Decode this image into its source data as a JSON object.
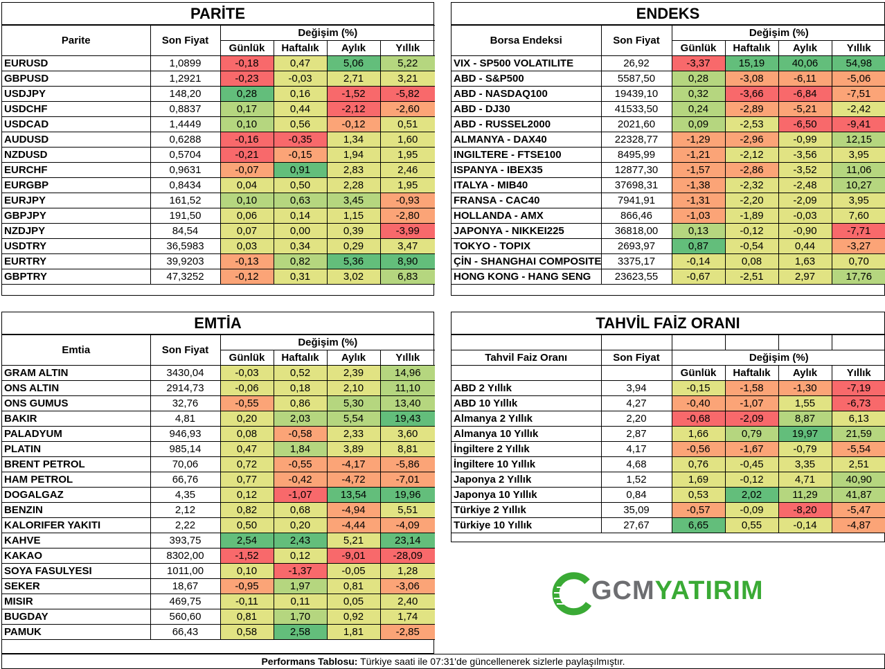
{
  "colors": {
    "red": "#f8696b",
    "orange": "#fba477",
    "yellow": "#e1e383",
    "lightgreen": "#b5d67f",
    "green": "#63be7b"
  },
  "headers": {
    "son_fiyat": "Son Fiyat",
    "degisim": "Değişim (%)",
    "gunluk": "Günlük",
    "haftalik": "Haftalık",
    "aylik": "Aylık",
    "yillik": "Yıllık"
  },
  "parite": {
    "title": "PARİTE",
    "col_label": "Parite",
    "rows": [
      [
        "EURUSD",
        "1,0899",
        "-0,18",
        "0,47",
        "5,06",
        "5,22"
      ],
      [
        "GBPUSD",
        "1,2921",
        "-0,23",
        "-0,03",
        "2,71",
        "3,21"
      ],
      [
        "USDJPY",
        "148,20",
        "0,28",
        "0,16",
        "-1,52",
        "-5,82"
      ],
      [
        "USDCHF",
        "0,8837",
        "0,17",
        "0,44",
        "-2,12",
        "-2,60"
      ],
      [
        "USDCAD",
        "1,4449",
        "0,10",
        "0,56",
        "-0,12",
        "0,51"
      ],
      [
        "AUDUSD",
        "0,6288",
        "-0,16",
        "-0,35",
        "1,34",
        "1,60"
      ],
      [
        "NZDUSD",
        "0,5704",
        "-0,21",
        "-0,15",
        "1,94",
        "1,95"
      ],
      [
        "EURCHF",
        "0,9631",
        "-0,07",
        "0,91",
        "2,83",
        "2,46"
      ],
      [
        "EURGBP",
        "0,8434",
        "0,04",
        "0,50",
        "2,28",
        "1,95"
      ],
      [
        "EURJPY",
        "161,52",
        "0,10",
        "0,63",
        "3,45",
        "-0,93"
      ],
      [
        "GBPJPY",
        "191,50",
        "0,06",
        "0,14",
        "1,15",
        "-2,80"
      ],
      [
        "NZDJPY",
        "84,54",
        "0,07",
        "0,00",
        "0,39",
        "-3,99"
      ],
      [
        "USDTRY",
        "36,5983",
        "0,03",
        "0,34",
        "0,29",
        "3,47"
      ],
      [
        "EURTRY",
        "39,9203",
        "-0,13",
        "0,82",
        "5,36",
        "8,90"
      ],
      [
        "GBPTRY",
        "47,3252",
        "-0,12",
        "0,31",
        "3,02",
        "6,83"
      ]
    ],
    "colors": [
      [
        "red",
        "yellow",
        "green",
        "lightgreen"
      ],
      [
        "red",
        "yellow",
        "yellow",
        "yellow"
      ],
      [
        "green",
        "yellow",
        "red",
        "red"
      ],
      [
        "lightgreen",
        "yellow",
        "red",
        "orange"
      ],
      [
        "lightgreen",
        "yellow",
        "orange",
        "yellow"
      ],
      [
        "red",
        "red",
        "yellow",
        "yellow"
      ],
      [
        "red",
        "orange",
        "yellow",
        "yellow"
      ],
      [
        "orange",
        "green",
        "yellow",
        "yellow"
      ],
      [
        "yellow",
        "yellow",
        "yellow",
        "yellow"
      ],
      [
        "lightgreen",
        "lightgreen",
        "lightgreen",
        "orange"
      ],
      [
        "yellow",
        "yellow",
        "yellow",
        "orange"
      ],
      [
        "yellow",
        "yellow",
        "yellow",
        "red"
      ],
      [
        "yellow",
        "yellow",
        "yellow",
        "yellow"
      ],
      [
        "orange",
        "lightgreen",
        "green",
        "green"
      ],
      [
        "orange",
        "yellow",
        "yellow",
        "lightgreen"
      ]
    ]
  },
  "endeks": {
    "title": "ENDEKS",
    "col_label": "Borsa Endeksi",
    "rows": [
      [
        "VIX  - SP500 VOLATILITE",
        "26,92",
        "-3,37",
        "15,19",
        "40,06",
        "54,98"
      ],
      [
        "ABD - S&P500",
        "5587,50",
        "0,28",
        "-3,08",
        "-6,11",
        "-5,06"
      ],
      [
        "ABD - NASDAQ100",
        "19439,10",
        "0,32",
        "-3,66",
        "-6,84",
        "-7,51"
      ],
      [
        "ABD - DJ30",
        "41533,50",
        "0,24",
        "-2,89",
        "-5,21",
        "-2,42"
      ],
      [
        "ABD - RUSSEL2000",
        "2021,60",
        "0,09",
        "-2,53",
        "-6,50",
        "-9,41"
      ],
      [
        "ALMANYA - DAX40",
        "22328,77",
        "-1,29",
        "-2,96",
        "-0,99",
        "12,15"
      ],
      [
        "INGILTERE - FTSE100",
        "8495,99",
        "-1,21",
        "-2,12",
        "-3,56",
        "3,95"
      ],
      [
        "ISPANYA - IBEX35",
        "12877,30",
        "-1,57",
        "-2,86",
        "-3,52",
        "11,06"
      ],
      [
        "ITALYA - MIB40",
        "37698,31",
        "-1,38",
        "-2,32",
        "-2,48",
        "10,27"
      ],
      [
        "FRANSA - CAC40",
        "7941,91",
        "-1,31",
        "-2,20",
        "-2,09",
        "3,95"
      ],
      [
        "HOLLANDA - AMX",
        "866,46",
        "-1,03",
        "-1,89",
        "-0,03",
        "7,60"
      ],
      [
        "JAPONYA - NIKKEI225",
        "36818,00",
        "0,13",
        "-0,12",
        "-0,90",
        "-7,71"
      ],
      [
        "TOKYO - TOPIX",
        "2693,97",
        "0,87",
        "-0,54",
        "0,44",
        "-3,27"
      ],
      [
        "ÇİN - SHANGHAI COMPOSITE",
        "3375,17",
        "-0,14",
        "0,08",
        "1,63",
        "0,70"
      ],
      [
        "HONG KONG - HANG SENG",
        "23623,55",
        "-0,67",
        "-2,51",
        "2,97",
        "17,76"
      ]
    ],
    "colors": [
      [
        "red",
        "green",
        "green",
        "green"
      ],
      [
        "lightgreen",
        "orange",
        "orange",
        "orange"
      ],
      [
        "lightgreen",
        "red",
        "red",
        "orange"
      ],
      [
        "lightgreen",
        "orange",
        "orange",
        "yellow"
      ],
      [
        "lightgreen",
        "yellow",
        "red",
        "red"
      ],
      [
        "orange",
        "orange",
        "yellow",
        "lightgreen"
      ],
      [
        "orange",
        "yellow",
        "yellow",
        "yellow"
      ],
      [
        "orange",
        "orange",
        "yellow",
        "lightgreen"
      ],
      [
        "orange",
        "yellow",
        "yellow",
        "lightgreen"
      ],
      [
        "orange",
        "yellow",
        "yellow",
        "yellow"
      ],
      [
        "orange",
        "yellow",
        "yellow",
        "yellow"
      ],
      [
        "lightgreen",
        "yellow",
        "yellow",
        "red"
      ],
      [
        "green",
        "yellow",
        "yellow",
        "orange"
      ],
      [
        "yellow",
        "yellow",
        "yellow",
        "yellow"
      ],
      [
        "yellow",
        "yellow",
        "yellow",
        "lightgreen"
      ]
    ]
  },
  "emtia": {
    "title": "EMTİA",
    "col_label": "Emtia",
    "rows": [
      [
        "GRAM ALTIN",
        "3430,04",
        "-0,03",
        "0,52",
        "2,39",
        "14,96"
      ],
      [
        "ONS ALTIN",
        "2914,73",
        "-0,06",
        "0,18",
        "2,10",
        "11,10"
      ],
      [
        "ONS GUMUS",
        "32,76",
        "-0,55",
        "0,86",
        "5,30",
        "13,40"
      ],
      [
        "BAKIR",
        "4,81",
        "0,20",
        "2,03",
        "5,54",
        "19,43"
      ],
      [
        "PALADYUM",
        "946,93",
        "0,08",
        "-0,58",
        "2,33",
        "3,60"
      ],
      [
        "PLATIN",
        "985,14",
        "0,47",
        "1,84",
        "3,89",
        "8,81"
      ],
      [
        "BRENT PETROL",
        "70,06",
        "0,72",
        "-0,55",
        "-4,17",
        "-5,86"
      ],
      [
        "HAM PETROL",
        "66,76",
        "0,77",
        "-0,42",
        "-4,72",
        "-7,01"
      ],
      [
        "DOGALGAZ",
        "4,35",
        "0,12",
        "-1,07",
        "13,54",
        "19,96"
      ],
      [
        "BENZIN",
        "2,12",
        "0,82",
        "0,68",
        "-4,94",
        "5,51"
      ],
      [
        "KALORIFER YAKITI",
        "2,22",
        "0,50",
        "0,20",
        "-4,44",
        "-4,09"
      ],
      [
        "KAHVE",
        "393,75",
        "2,54",
        "2,43",
        "5,21",
        "23,14"
      ],
      [
        "KAKAO",
        "8302,00",
        "-1,52",
        "0,12",
        "-9,01",
        "-28,09"
      ],
      [
        "SOYA FASULYESI",
        "1011,00",
        "0,10",
        "-1,37",
        "-0,05",
        "1,28"
      ],
      [
        "SEKER",
        "18,67",
        "-0,95",
        "1,97",
        "0,81",
        "-3,06"
      ],
      [
        "MISIR",
        "469,75",
        "-0,11",
        "0,11",
        "0,05",
        "2,40"
      ],
      [
        "BUGDAY",
        "560,60",
        "0,81",
        "1,70",
        "0,92",
        "1,74"
      ],
      [
        "PAMUK",
        "66,43",
        "0,58",
        "2,58",
        "1,81",
        "-2,85"
      ]
    ],
    "colors": [
      [
        "yellow",
        "yellow",
        "yellow",
        "lightgreen"
      ],
      [
        "yellow",
        "yellow",
        "yellow",
        "lightgreen"
      ],
      [
        "orange",
        "yellow",
        "lightgreen",
        "lightgreen"
      ],
      [
        "yellow",
        "lightgreen",
        "lightgreen",
        "green"
      ],
      [
        "yellow",
        "orange",
        "yellow",
        "yellow"
      ],
      [
        "yellow",
        "lightgreen",
        "yellow",
        "yellow"
      ],
      [
        "yellow",
        "orange",
        "orange",
        "orange"
      ],
      [
        "yellow",
        "orange",
        "orange",
        "orange"
      ],
      [
        "yellow",
        "red",
        "green",
        "green"
      ],
      [
        "yellow",
        "yellow",
        "orange",
        "yellow"
      ],
      [
        "yellow",
        "yellow",
        "orange",
        "orange"
      ],
      [
        "green",
        "green",
        "yellow",
        "green"
      ],
      [
        "red",
        "yellow",
        "red",
        "red"
      ],
      [
        "yellow",
        "red",
        "yellow",
        "yellow"
      ],
      [
        "orange",
        "lightgreen",
        "yellow",
        "orange"
      ],
      [
        "yellow",
        "yellow",
        "yellow",
        "yellow"
      ],
      [
        "yellow",
        "lightgreen",
        "yellow",
        "yellow"
      ],
      [
        "yellow",
        "green",
        "yellow",
        "orange"
      ]
    ]
  },
  "tahvil": {
    "title": "TAHVİL FAİZ ORANI",
    "col_label": "Tahvil Faiz Oranı",
    "rows": [
      [
        "ABD 2 Yıllık",
        "3,94",
        "-0,15",
        "-1,58",
        "-1,30",
        "-7,19"
      ],
      [
        "ABD 10 Yıllık",
        "4,27",
        "-0,40",
        "-1,07",
        "1,55",
        "-6,73"
      ],
      [
        "Almanya 2 Yıllık",
        "2,20",
        "-0,68",
        "-2,09",
        "8,87",
        "6,13"
      ],
      [
        "Almanya 10 Yıllık",
        "2,87",
        "1,66",
        "0,79",
        "19,97",
        "21,59"
      ],
      [
        "İngiltere 2 Yıllık",
        "4,17",
        "-0,56",
        "-1,67",
        "-0,79",
        "-5,54"
      ],
      [
        "İngiltere 10 Yıllık",
        "4,68",
        "0,76",
        "-0,45",
        "3,35",
        "2,51"
      ],
      [
        "Japonya 2 Yıllık",
        "1,52",
        "1,69",
        "-0,12",
        "4,71",
        "40,90"
      ],
      [
        "Japonya 10 Yıllık",
        "0,84",
        "0,53",
        "2,02",
        "11,29",
        "41,87"
      ],
      [
        "Türkiye 2 Yıllık",
        "35,09",
        "-0,57",
        "-0,09",
        "-8,20",
        "-5,47"
      ],
      [
        "Türkiye 10 Yıllık",
        "27,67",
        "6,65",
        "0,55",
        "-0,14",
        "-4,87"
      ]
    ],
    "colors": [
      [
        "yellow",
        "orange",
        "orange",
        "red"
      ],
      [
        "orange",
        "orange",
        "yellow",
        "red"
      ],
      [
        "red",
        "red",
        "lightgreen",
        "yellow"
      ],
      [
        "yellow",
        "lightgreen",
        "green",
        "lightgreen"
      ],
      [
        "orange",
        "orange",
        "yellow",
        "orange"
      ],
      [
        "yellow",
        "yellow",
        "yellow",
        "yellow"
      ],
      [
        "yellow",
        "yellow",
        "yellow",
        "lightgreen"
      ],
      [
        "yellow",
        "green",
        "lightgreen",
        "lightgreen"
      ],
      [
        "orange",
        "yellow",
        "red",
        "orange"
      ],
      [
        "green",
        "yellow",
        "yellow",
        "orange"
      ]
    ]
  },
  "logo": {
    "text_gcm": "GCM",
    "text_yatirim": "YATIRIM",
    "color_gray": "#6d6e71",
    "color_green": "#3aaa35"
  },
  "footer": {
    "bold": "Performans Tablosu:",
    "text": " Türkiye saati ile 07:31'de güncellenerek sizlerle paylaşılmıştır."
  }
}
